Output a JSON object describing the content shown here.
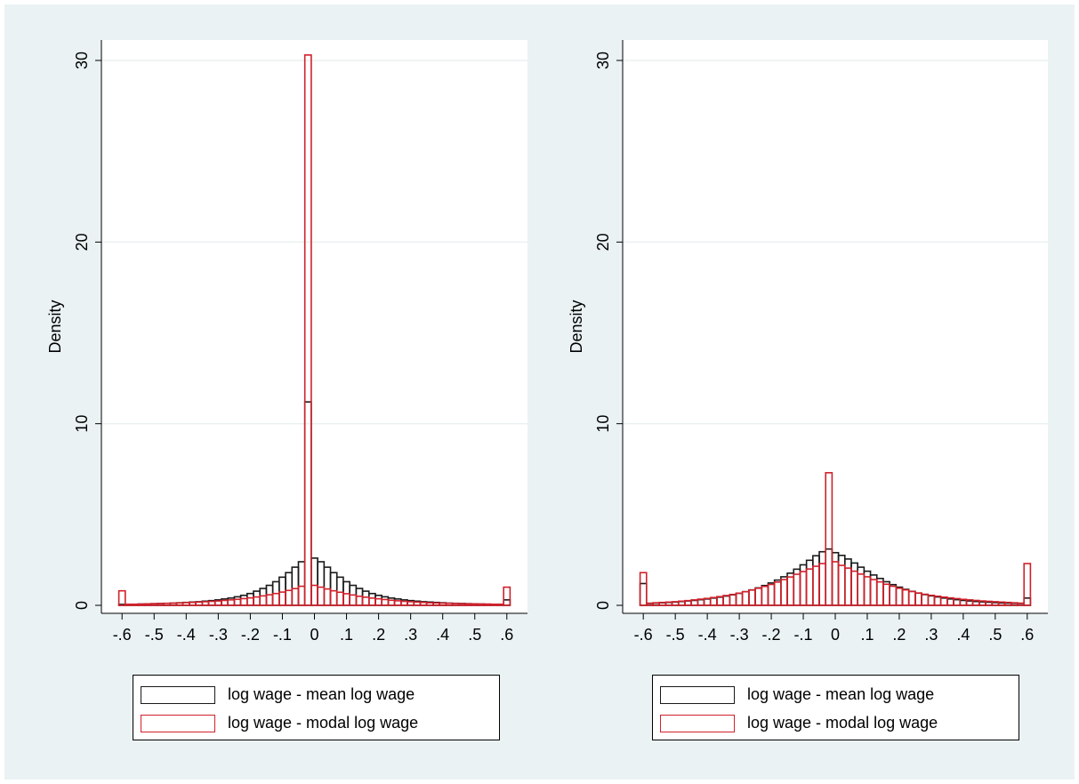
{
  "colors": {
    "figure_background": "#eaf2f3",
    "plot_background": "#ffffff",
    "gridline": "#e6eeee",
    "mean_series": "#1a1a1a",
    "modal_series": "#d0212b"
  },
  "chart_data": [
    {
      "type": "bar",
      "subtype": "histogram-overlay",
      "title": "",
      "xlabel": "",
      "ylabel": "Density",
      "xlim": [
        -0.62,
        0.62
      ],
      "ylim": [
        0,
        30
      ],
      "xticks": [
        "-.6",
        "-.5",
        "-.4",
        "-.3",
        "-.2",
        "-.1",
        "0",
        ".1",
        ".2",
        ".3",
        ".4",
        ".5",
        ".6"
      ],
      "xtick_values": [
        -0.6,
        -0.5,
        -0.4,
        -0.3,
        -0.2,
        -0.1,
        0,
        0.1,
        0.2,
        0.3,
        0.4,
        0.5,
        0.6
      ],
      "yticks": [
        "0",
        "10",
        "20",
        "30"
      ],
      "ytick_values": [
        0,
        10,
        20,
        30
      ],
      "grid": true,
      "bin_width": 0.02,
      "bin_start": -0.61,
      "legend_position": "bottom",
      "legend": [
        "log wage - mean log wage",
        "log wage - modal log wage"
      ],
      "series": [
        {
          "name": "log wage - mean log wage",
          "color": "#1a1a1a",
          "values": [
            0.05,
            0.05,
            0.06,
            0.07,
            0.08,
            0.09,
            0.1,
            0.11,
            0.12,
            0.14,
            0.16,
            0.18,
            0.2,
            0.23,
            0.26,
            0.3,
            0.35,
            0.4,
            0.47,
            0.55,
            0.65,
            0.78,
            0.93,
            1.1,
            1.3,
            1.55,
            1.8,
            2.1,
            2.4,
            11.2,
            2.6,
            2.4,
            2.1,
            1.8,
            1.55,
            1.3,
            1.1,
            0.93,
            0.78,
            0.65,
            0.55,
            0.47,
            0.4,
            0.35,
            0.3,
            0.26,
            0.23,
            0.2,
            0.18,
            0.16,
            0.14,
            0.12,
            0.11,
            0.1,
            0.09,
            0.08,
            0.07,
            0.06,
            0.05,
            0.05,
            0.3
          ]
        },
        {
          "name": "log wage - modal log wage",
          "color": "#d0212b",
          "values": [
            0.8,
            0.06,
            0.06,
            0.07,
            0.08,
            0.09,
            0.1,
            0.11,
            0.12,
            0.13,
            0.15,
            0.16,
            0.18,
            0.2,
            0.22,
            0.24,
            0.27,
            0.3,
            0.33,
            0.37,
            0.41,
            0.46,
            0.52,
            0.58,
            0.65,
            0.73,
            0.82,
            0.92,
            1.05,
            30.3,
            1.1,
            1.0,
            0.9,
            0.8,
            0.72,
            0.64,
            0.57,
            0.5,
            0.45,
            0.4,
            0.36,
            0.32,
            0.28,
            0.25,
            0.22,
            0.2,
            0.18,
            0.16,
            0.14,
            0.13,
            0.12,
            0.11,
            0.1,
            0.09,
            0.08,
            0.08,
            0.07,
            0.07,
            0.06,
            0.06,
            1.0
          ]
        }
      ]
    },
    {
      "type": "bar",
      "subtype": "histogram-overlay",
      "title": "",
      "xlabel": "",
      "ylabel": "Density",
      "xlim": [
        -0.62,
        0.62
      ],
      "ylim": [
        0,
        30
      ],
      "xticks": [
        "-.6",
        "-.5",
        "-.4",
        "-.3",
        "-.2",
        "-.1",
        "0",
        ".1",
        ".2",
        ".3",
        ".4",
        ".5",
        ".6"
      ],
      "xtick_values": [
        -0.6,
        -0.5,
        -0.4,
        -0.3,
        -0.2,
        -0.1,
        0,
        0.1,
        0.2,
        0.3,
        0.4,
        0.5,
        0.6
      ],
      "yticks": [
        "0",
        "10",
        "20",
        "30"
      ],
      "ytick_values": [
        0,
        10,
        20,
        30
      ],
      "grid": true,
      "bin_width": 0.02,
      "bin_start": -0.61,
      "legend_position": "bottom",
      "legend": [
        "log wage - mean log wage",
        "log wage - modal log wage"
      ],
      "series": [
        {
          "name": "log wage - mean log wage",
          "color": "#1a1a1a",
          "values": [
            1.2,
            0.1,
            0.12,
            0.14,
            0.16,
            0.18,
            0.21,
            0.24,
            0.27,
            0.31,
            0.35,
            0.4,
            0.45,
            0.51,
            0.58,
            0.66,
            0.75,
            0.85,
            0.96,
            1.09,
            1.23,
            1.39,
            1.57,
            1.77,
            1.99,
            2.23,
            2.48,
            2.73,
            2.95,
            3.1,
            2.9,
            2.75,
            2.55,
            2.33,
            2.1,
            1.88,
            1.67,
            1.48,
            1.3,
            1.14,
            1.0,
            0.88,
            0.77,
            0.67,
            0.59,
            0.52,
            0.46,
            0.4,
            0.35,
            0.31,
            0.27,
            0.24,
            0.21,
            0.19,
            0.17,
            0.15,
            0.13,
            0.12,
            0.11,
            0.1,
            0.4
          ]
        },
        {
          "name": "log wage - modal log wage",
          "color": "#d0212b",
          "values": [
            1.8,
            0.12,
            0.14,
            0.16,
            0.18,
            0.2,
            0.23,
            0.26,
            0.3,
            0.34,
            0.38,
            0.43,
            0.48,
            0.54,
            0.6,
            0.67,
            0.75,
            0.84,
            0.94,
            1.04,
            1.15,
            1.28,
            1.42,
            1.56,
            1.71,
            1.86,
            2.0,
            2.15,
            2.3,
            7.3,
            2.4,
            2.2,
            2.05,
            1.88,
            1.72,
            1.57,
            1.42,
            1.29,
            1.16,
            1.05,
            0.94,
            0.85,
            0.76,
            0.68,
            0.61,
            0.55,
            0.5,
            0.45,
            0.41,
            0.37,
            0.33,
            0.3,
            0.27,
            0.24,
            0.22,
            0.2,
            0.18,
            0.16,
            0.14,
            0.12,
            2.3
          ]
        }
      ]
    }
  ]
}
